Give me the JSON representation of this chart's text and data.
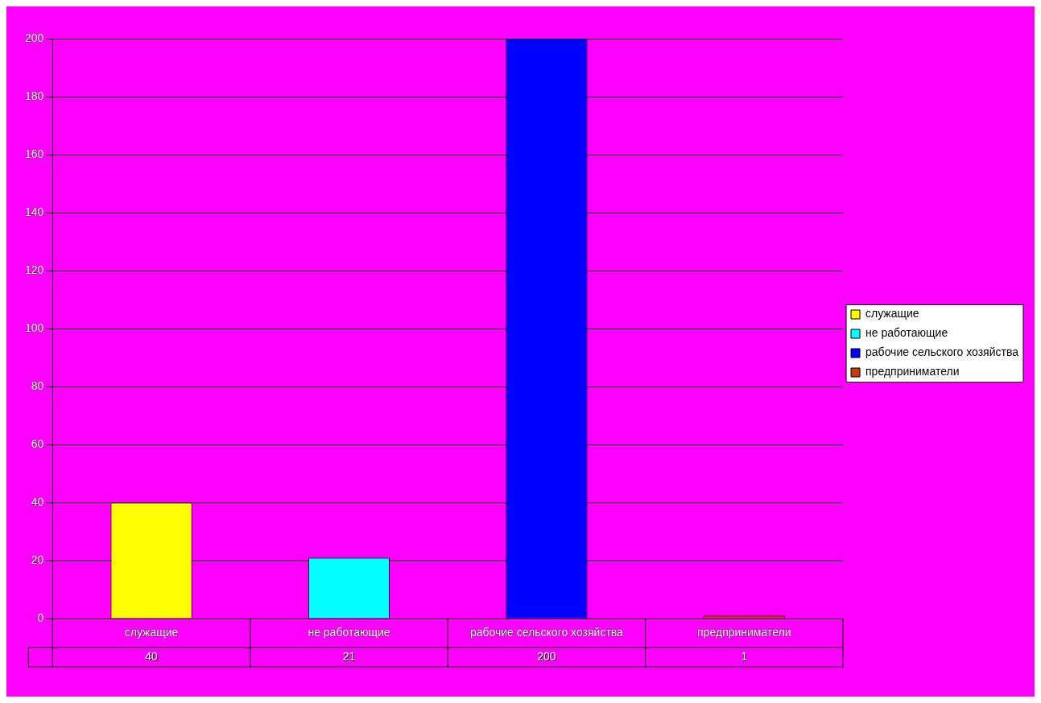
{
  "chart_data": {
    "type": "bar",
    "categories": [
      "служащие",
      "не работающие",
      "рабочие сельского хозяйства",
      "предприниматели"
    ],
    "series": [
      {
        "name": "служащие",
        "color": "#ffff00",
        "values": [
          40,
          null,
          null,
          null
        ],
        "value_labels": [
          "40",
          null,
          null,
          null
        ]
      },
      {
        "name": "не работающие",
        "color": "#00ffff",
        "values": [
          null,
          21,
          null,
          null
        ],
        "value_labels": [
          null,
          "21",
          null,
          null
        ]
      },
      {
        "name": "рабочие сельского хозяйства",
        "color": "#0000ff",
        "values": [
          null,
          null,
          200,
          null
        ],
        "value_labels": [
          null,
          null,
          "200",
          null
        ]
      },
      {
        "name": "предприниматели",
        "color": "#c04000",
        "values": [
          null,
          null,
          null,
          1
        ],
        "value_labels": [
          null,
          null,
          null,
          "1"
        ]
      }
    ],
    "ylim": [
      0,
      200
    ],
    "yticks": [
      0,
      20,
      40,
      60,
      80,
      100,
      120,
      140,
      160,
      180,
      200
    ],
    "grid": "y",
    "legend": "right"
  }
}
